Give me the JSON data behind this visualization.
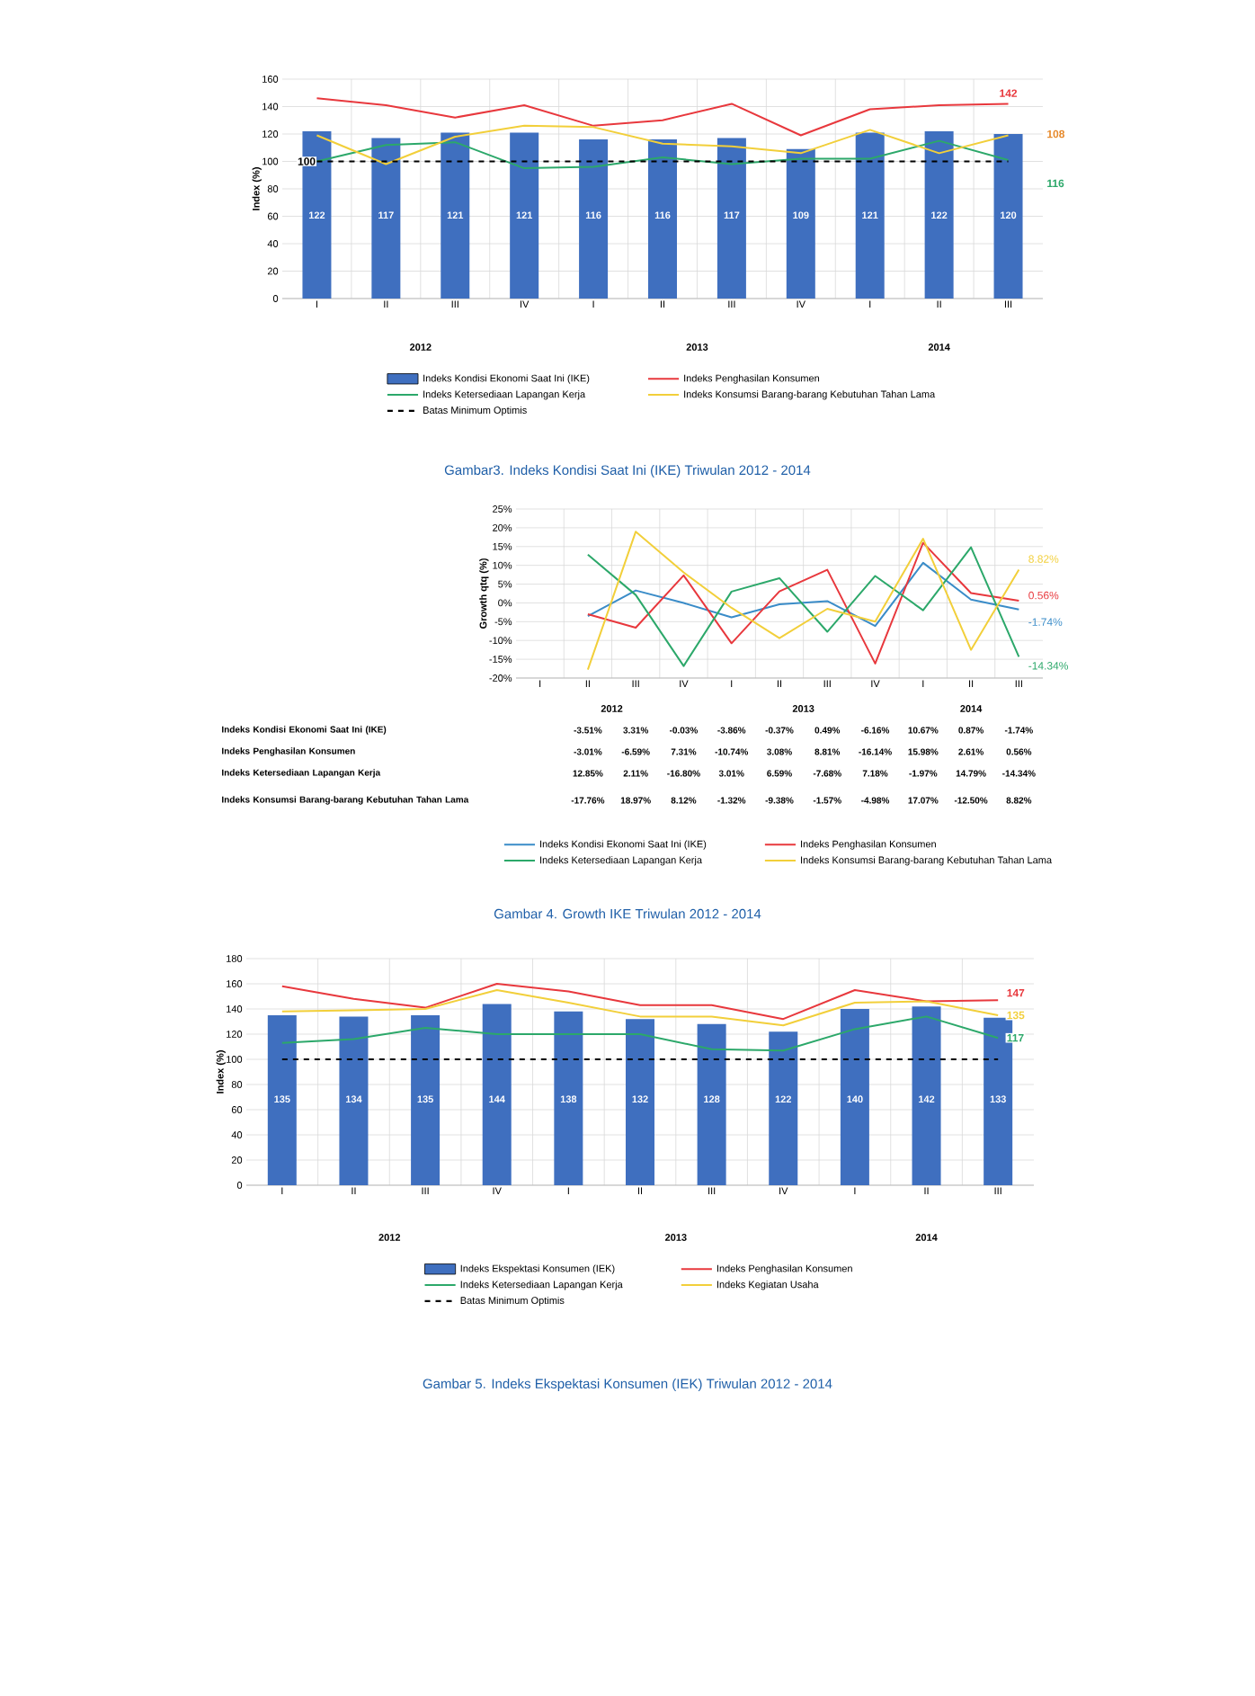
{
  "chart_data": [
    {
      "type": "bar",
      "title": "Gambar3. Indeks Kondisi Saat Ini (IKE) Triwulan 2012 - 2014",
      "ylabel": "Index (%)",
      "categories": [
        "I",
        "II",
        "III",
        "IV",
        "I",
        "II",
        "III",
        "IV",
        "I",
        "II",
        "III"
      ],
      "series": [
        {
          "name": "Indeks Kondisi Ekonomi Saat Ini (IKE)",
          "type": "bar",
          "color": "#3f6fbf",
          "values": [
            122,
            117,
            121,
            121,
            116,
            116,
            117,
            109,
            121,
            122,
            120
          ],
          "value_labels": [
            "122",
            "117",
            "121",
            "121",
            "116",
            "116",
            "117",
            "109",
            "121",
            "122",
            "120"
          ]
        },
        {
          "name": "Indeks Penghasilan Konsumen",
          "type": "line",
          "color": "#e8383d",
          "values": [
            146,
            141,
            132,
            141,
            126,
            130,
            142,
            119,
            138,
            141,
            142
          ],
          "value_labels": [
            null,
            null,
            null,
            null,
            null,
            null,
            null,
            null,
            null,
            null,
            "142"
          ]
        },
        {
          "name": "Indeks Ketersediaan Lapangan Kerja",
          "type": "line",
          "color": "#2ca86a",
          "values": [
            100,
            112,
            114,
            95,
            96,
            103,
            98,
            102,
            102,
            115,
            101
          ]
        },
        {
          "name": "Indeks Konsumsi Barang-barang Kebutuhan Tahan Lama",
          "type": "line",
          "color": "#f2cf3a",
          "values": [
            119,
            98,
            118,
            126,
            125,
            113,
            111,
            106,
            123,
            106,
            119
          ]
        }
      ],
      "ref_lines": [
        {
          "axis": "y",
          "value": 100,
          "label": "Batas Minimum Optimis",
          "color": "#000000",
          "line_style": "dashed"
        }
      ],
      "annotations": [
        "2012",
        "2013",
        "2014",
        "100",
        "108",
        "116"
      ],
      "ylim": [
        0,
        160
      ],
      "yticks": [
        0,
        20,
        40,
        60,
        80,
        100,
        120,
        140,
        160
      ],
      "grid": true,
      "legend": "bottom"
    },
    {
      "type": "line",
      "title": "Gambar 4. Growth IKE Triwulan 2012 - 2014",
      "ylabel": "Growth qtq (%)",
      "categories": [
        "I",
        "II",
        "III",
        "IV",
        "I",
        "II",
        "III",
        "IV",
        "I",
        "II",
        "III"
      ],
      "series": [
        {
          "name": "Indeks Kondisi Ekonomi Saat Ini (IKE)",
          "color": "#3a8cc8",
          "values": [
            null,
            -3.51,
            3.31,
            -0.03,
            -3.86,
            -0.37,
            0.49,
            -6.16,
            10.67,
            0.87,
            -1.74
          ],
          "value_labels": [
            null,
            "-3.51%",
            "3.31%",
            "-0.03%",
            "-3.86%",
            "-0.37%",
            "0.49%",
            "-6.16%",
            "10.67%",
            "0.87%",
            "-1.74%"
          ]
        },
        {
          "name": "Indeks Penghasilan Konsumen",
          "color": "#e8383d",
          "values": [
            null,
            -3.01,
            -6.59,
            7.31,
            -10.74,
            3.08,
            8.81,
            -16.14,
            15.98,
            2.61,
            0.56
          ],
          "value_labels": [
            null,
            "-3.01%",
            "-6.59%",
            "7.31%",
            "-10.74%",
            "3.08%",
            "8.81%",
            "-16.14%",
            "15.98%",
            "2.61%",
            "0.56%"
          ]
        },
        {
          "name": "Indeks Ketersediaan Lapangan Kerja",
          "color": "#2ca86a",
          "values": [
            null,
            12.85,
            2.11,
            -16.8,
            3.01,
            6.59,
            -7.68,
            7.18,
            -1.97,
            14.79,
            -14.34
          ],
          "value_labels": [
            null,
            "12.85%",
            "2.11%",
            "-16.80%",
            "3.01%",
            "6.59%",
            "-7.68%",
            "7.18%",
            "-1.97%",
            "14.79%",
            "-14.34%"
          ]
        },
        {
          "name": "Indeks Konsumsi Barang-barang Kebutuhan Tahan Lama",
          "color": "#f2cf3a",
          "values": [
            null,
            -17.76,
            18.97,
            8.12,
            -1.32,
            -9.38,
            -1.57,
            -4.98,
            17.07,
            -12.5,
            8.82
          ],
          "value_labels": [
            null,
            "-17.76%",
            "18.97%",
            "8.12%",
            "-1.32%",
            "-9.38%",
            "-1.57%",
            "-4.98%",
            "17.07%",
            "-12.50%",
            "8.82%"
          ]
        }
      ],
      "annotations": [
        "2012",
        "2013",
        "2014"
      ],
      "ylim": [
        -20,
        25
      ],
      "yticks": [
        {
          "value": -20,
          "label": "-20%"
        },
        {
          "value": -15,
          "label": "-15%"
        },
        {
          "value": -10,
          "label": "-10%"
        },
        {
          "value": -5,
          "label": "-5%"
        },
        {
          "value": 0,
          "label": "0%"
        },
        {
          "value": 5,
          "label": "5%"
        },
        {
          "value": 10,
          "label": "10%"
        },
        {
          "value": 15,
          "label": "15%"
        },
        {
          "value": 20,
          "label": "20%"
        },
        {
          "value": 25,
          "label": "25%"
        }
      ],
      "grid": true,
      "legend": "bottom"
    },
    {
      "type": "bar",
      "title": "Gambar 5. Indeks Ekspektasi Konsumen (IEK) Triwulan 2012 - 2014",
      "ylabel": "Index (%)",
      "categories": [
        "I",
        "II",
        "III",
        "IV",
        "I",
        "II",
        "III",
        "IV",
        "I",
        "II",
        "III"
      ],
      "series": [
        {
          "name": "Indeks Ekspektasi Konsumen (IEK)",
          "type": "bar",
          "color": "#3f6fbf",
          "values": [
            135,
            134,
            135,
            144,
            138,
            132,
            128,
            122,
            140,
            142,
            133
          ],
          "value_labels": [
            "135",
            "134",
            "135",
            "144",
            "138",
            "132",
            "128",
            "122",
            "140",
            "142",
            "133"
          ]
        },
        {
          "name": "Indeks Penghasilan Konsumen",
          "type": "line",
          "color": "#e8383d",
          "values": [
            158,
            148,
            141,
            160,
            154,
            143,
            143,
            132,
            155,
            146,
            147
          ],
          "value_labels": [
            null,
            null,
            null,
            null,
            null,
            null,
            null,
            null,
            null,
            null,
            "147"
          ]
        },
        {
          "name": "Indeks Ketersediaan Lapangan Kerja",
          "type": "line",
          "color": "#2ca86a",
          "values": [
            113,
            116,
            125,
            120,
            120,
            120,
            108,
            107,
            124,
            134,
            117
          ],
          "value_labels": [
            null,
            null,
            null,
            null,
            null,
            null,
            null,
            null,
            null,
            null,
            "117"
          ]
        },
        {
          "name": "Indeks Kegiatan Usaha",
          "type": "line",
          "color": "#f2cf3a",
          "values": [
            138,
            139,
            140,
            155,
            145,
            134,
            134,
            127,
            145,
            146,
            135
          ],
          "value_labels": [
            null,
            null,
            null,
            null,
            null,
            null,
            null,
            null,
            null,
            null,
            "135"
          ]
        }
      ],
      "ref_lines": [
        {
          "axis": "y",
          "value": 100,
          "label": "Batas Minimum Optimis",
          "color": "#000000",
          "line_style": "dashed"
        }
      ],
      "annotations": [
        "2012",
        "2013",
        "2014"
      ],
      "ylim": [
        0,
        180
      ],
      "yticks": [
        0,
        20,
        40,
        60,
        80,
        100,
        120,
        140,
        160,
        180
      ],
      "grid": true,
      "legend": "bottom"
    }
  ]
}
